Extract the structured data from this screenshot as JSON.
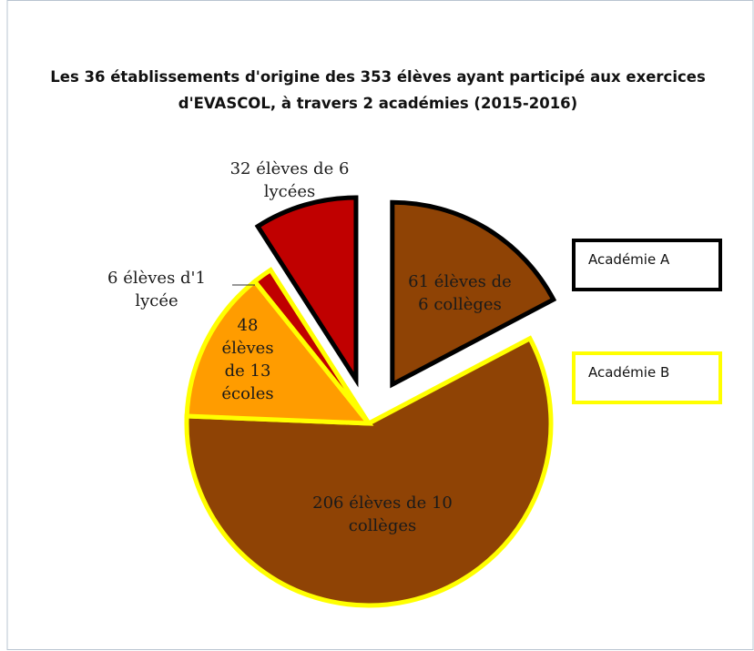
{
  "chart_data": {
    "type": "pie",
    "title": "Les 36 établissements d'origine des 353 élèves ayant participé aux exercices d'EVASCOL, à travers 2 académies (2015-2016)",
    "values": [
      61,
      206,
      48,
      6,
      32
    ],
    "value_labels": [
      "61 élèves de 6 collèges",
      "206 élèves de 10 collèges",
      "48 élèves de 13 écoles",
      "6 élèves d'1 lycée",
      "32 élèves de 6 lycées"
    ],
    "colors": [
      "#8f4305",
      "#8f4305",
      "#ff9c00",
      "#c00000",
      "#c00000"
    ],
    "edge_colors": [
      "#000000",
      "#ffff00",
      "#ffff00",
      "#ffff00",
      "#000000"
    ],
    "exploded": [
      true,
      false,
      false,
      false,
      true
    ],
    "legend": [
      {
        "name": "Académie A",
        "color": "#000000"
      },
      {
        "name": "Académie B",
        "color": "#ffff00"
      }
    ]
  }
}
